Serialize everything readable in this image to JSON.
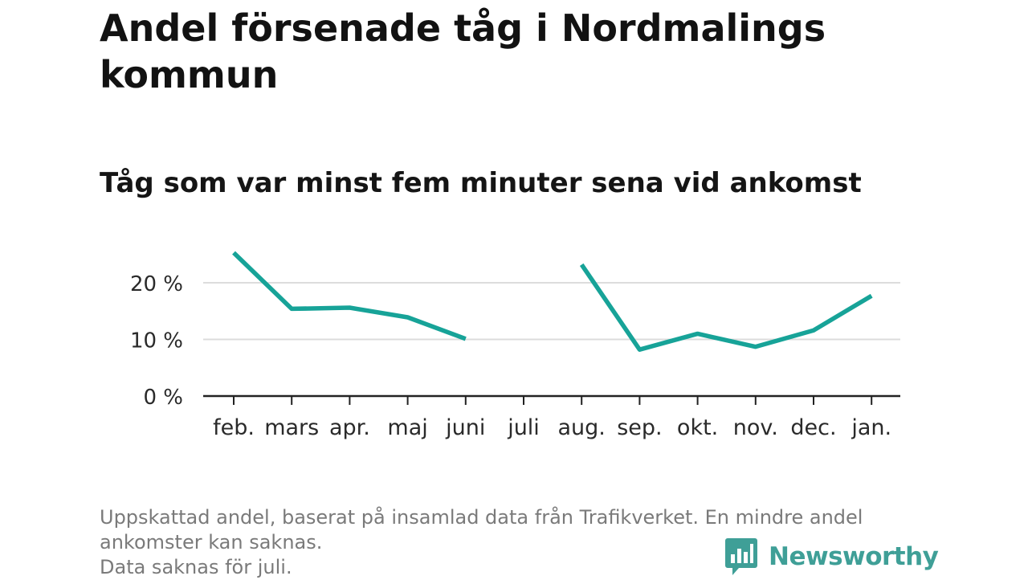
{
  "header": {
    "title": "Andel försenade tåg i Nordmalings kommun",
    "subtitle": "Tåg som var minst fem minuter sena vid ankomst"
  },
  "chart_data": {
    "type": "line",
    "title": "Andel försenade tåg i Nordmalings kommun",
    "subtitle": "Tåg som var minst fem minuter sena vid ankomst",
    "xlabel": "",
    "ylabel": "",
    "categories": [
      "feb.",
      "mars",
      "apr.",
      "maj",
      "juni",
      "juli",
      "aug.",
      "sep.",
      "okt.",
      "nov.",
      "dec.",
      "jan."
    ],
    "series": [
      {
        "values": [
          25.3,
          15.4,
          15.6,
          13.9,
          10.1,
          null,
          23.2,
          8.2,
          11.0,
          8.7,
          11.6,
          17.7
        ],
        "color": "#17a398"
      }
    ],
    "y_ticks": [
      {
        "value": 0,
        "label": "0 %"
      },
      {
        "value": 10,
        "label": "10 %"
      },
      {
        "value": 20,
        "label": "20 %"
      }
    ],
    "ylim": [
      0,
      27
    ],
    "grid": true,
    "gridline_color": "#dcdcdc",
    "baseline_color": "#222222",
    "legend": "none"
  },
  "footer": {
    "note_lines": [
      "Uppskattad andel, baserat på insamlad data från Trafikverket. En mindre andel",
      "ankomster kan saknas.",
      "Data saknas för juli."
    ],
    "brand": "Newsworthy",
    "brand_color": "#3f9f97",
    "brand_icon": "bar-chart-speech-bubble-icon"
  }
}
